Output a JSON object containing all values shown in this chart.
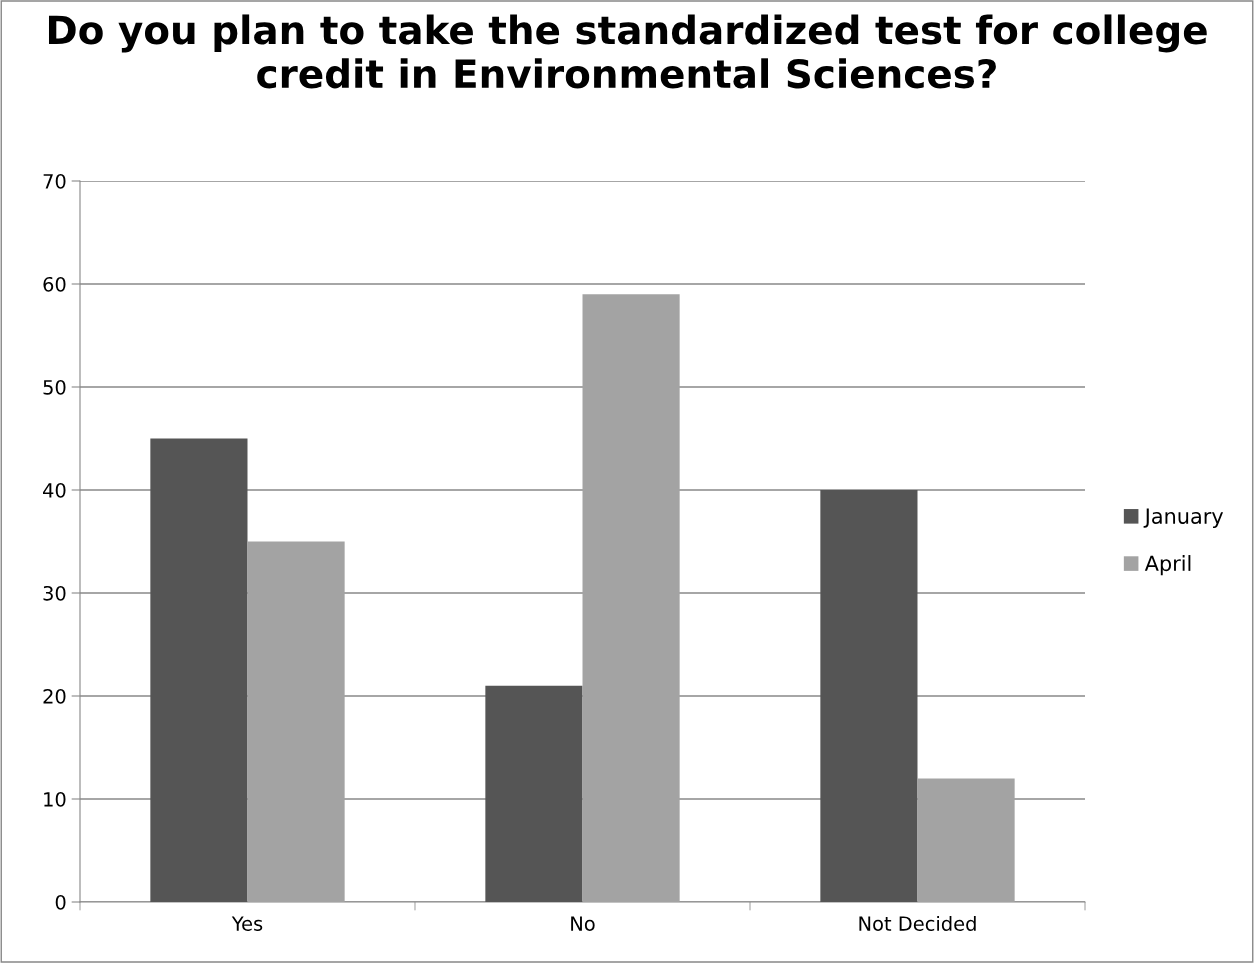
{
  "chart_data": {
    "type": "bar",
    "title": "Do you plan to take the standardized test for college credit in Environmental Sciences?",
    "categories": [
      "Yes",
      "No",
      "Not Decided"
    ],
    "series": [
      {
        "name": "January",
        "color": "#555555",
        "values": [
          45,
          21,
          40
        ]
      },
      {
        "name": "April",
        "color": "#a3a3a3",
        "values": [
          35,
          59,
          12
        ]
      }
    ],
    "ylim": [
      0,
      70
    ],
    "yticks": [
      0,
      10,
      20,
      30,
      40,
      50,
      60,
      70
    ],
    "grid": "y",
    "legend": "right"
  }
}
